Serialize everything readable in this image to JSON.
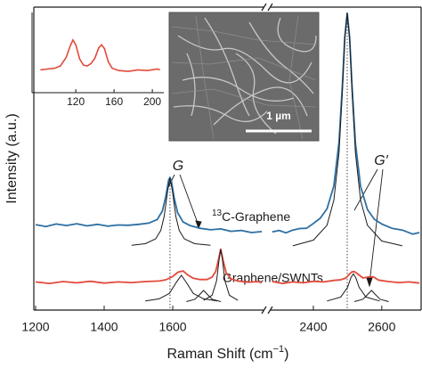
{
  "chart_data": {
    "type": "line",
    "x_label": {
      "text": "Raman Shift (cm",
      "superscript": "−1",
      "suffix": ")"
    },
    "y_label": "Intensity (a.u.)",
    "segments": [
      {
        "xlim": [
          1200,
          1870
        ],
        "xticks": [
          1200,
          1400,
          1600
        ]
      },
      {
        "xlim": [
          2270,
          2715
        ],
        "xticks": [
          2400,
          2600
        ]
      }
    ],
    "ylim": [
      0,
      100
    ],
    "reference_lines": [
      1592,
      2499
    ],
    "annotations": [
      {
        "text": "G"
      },
      {
        "text": "G′"
      }
    ],
    "series": [
      {
        "name_superscript": "13",
        "name": "C-Graphene",
        "color": "#2d6fa3",
        "line_width": 1.8,
        "x": [
          1200,
          1230,
          1260,
          1290,
          1320,
          1350,
          1380,
          1410,
          1440,
          1470,
          1500,
          1530,
          1555,
          1570,
          1580,
          1588,
          1592,
          1596,
          1604,
          1614,
          1630,
          1650,
          1680,
          1710,
          1740,
          1770,
          1800,
          1830,
          1860,
          null,
          2280,
          2300,
          2320,
          2340,
          2360,
          2380,
          2400,
          2420,
          2440,
          2460,
          2475,
          2485,
          2492,
          2499,
          2506,
          2513,
          2523,
          2538,
          2558,
          2578,
          2600,
          2630,
          2660,
          2690,
          2710
        ],
        "values": [
          28.2,
          27.6,
          28.4,
          27.9,
          28.5,
          27.8,
          28.3,
          27.7,
          28.1,
          28.0,
          28.3,
          28.7,
          29.9,
          32.8,
          37.6,
          42.9,
          43.8,
          42.6,
          37.1,
          32.2,
          29.1,
          27.9,
          27.0,
          26.5,
          26.8,
          26.0,
          26.3,
          25.6,
          25.9,
          null,
          25.8,
          26.3,
          25.5,
          26.4,
          26.9,
          27.0,
          28.6,
          30.3,
          33.4,
          41.0,
          55.5,
          74.3,
          90.2,
          98.0,
          90.0,
          74.0,
          55.2,
          40.8,
          33.2,
          30.0,
          28.4,
          27.0,
          26.4,
          25.1,
          25.6
        ]
      },
      {
        "name": "Graphene/SWNTs",
        "color": "#e24a3b",
        "line_width": 1.8,
        "x": [
          1200,
          1240,
          1280,
          1320,
          1360,
          1400,
          1440,
          1480,
          1520,
          1560,
          1580,
          1600,
          1615,
          1630,
          1645,
          1660,
          1680,
          1700,
          1715,
          1725,
          1732,
          1740,
          1748,
          1756,
          1770,
          1790,
          1820,
          1850,
          1860,
          null,
          2280,
          2310,
          2340,
          2370,
          2400,
          2430,
          2460,
          2480,
          2495,
          2505,
          2512,
          2520,
          2530,
          2545,
          2560,
          2575,
          2590,
          2620,
          2650,
          2680,
          2710
        ],
        "values": [
          9.3,
          8.8,
          9.4,
          9.0,
          9.5,
          8.9,
          9.3,
          9.1,
          9.4,
          9.6,
          10.0,
          11.1,
          12.5,
          12.9,
          11.5,
          10.5,
          10.1,
          10.1,
          10.9,
          12.7,
          16.0,
          20.1,
          15.9,
          12.3,
          10.3,
          9.6,
          9.2,
          9.4,
          9.0,
          null,
          9.4,
          8.8,
          9.3,
          9.0,
          9.5,
          9.3,
          9.8,
          10.0,
          10.6,
          11.8,
          12.6,
          12.7,
          11.9,
          10.6,
          10.9,
          11.0,
          9.9,
          9.4,
          9.1,
          9.3,
          8.9
        ]
      },
      {
        "color": "#1a1a1a",
        "line_width": 1,
        "x": [
          1480,
          1520,
          1550,
          1565,
          1575,
          1585,
          1592,
          1599,
          1609,
          1619,
          1634,
          1664,
          1710
        ],
        "values": [
          21.4,
          21.9,
          23.5,
          26.3,
          30.9,
          39.4,
          43.5,
          39.4,
          30.9,
          26.3,
          23.5,
          21.9,
          21.4
        ]
      },
      {
        "color": "#1a1a1a",
        "line_width": 1,
        "x": [
          2340,
          2400,
          2440,
          2460,
          2475,
          2485,
          2492,
          2499,
          2506,
          2513,
          2523,
          2538,
          2558,
          2600,
          2660
        ],
        "values": [
          21.2,
          23.1,
          28.0,
          36.3,
          52.0,
          72.3,
          89.6,
          98.0,
          89.6,
          72.3,
          52.0,
          36.3,
          28.0,
          22.8,
          21.2
        ]
      },
      {
        "color": "#1a1a1a",
        "line_width": 1,
        "x": [
          1520,
          1560,
          1590,
          1610,
          1625,
          1640,
          1660,
          1690,
          1730
        ],
        "values": [
          3.0,
          3.7,
          5.5,
          9.1,
          11.5,
          9.1,
          5.5,
          3.7,
          3.0
        ]
      },
      {
        "color": "#1a1a1a",
        "line_width": 1,
        "x": [
          1640,
          1665,
          1680,
          1690,
          1700,
          1715,
          1740
        ],
        "values": [
          2.8,
          3.6,
          5.3,
          6.5,
          5.3,
          3.6,
          2.8
        ]
      },
      {
        "color": "#1a1a1a",
        "line_width": 1,
        "x": [
          1690,
          1715,
          1728,
          1735,
          1740,
          1745,
          1752,
          1765,
          1790
        ],
        "values": [
          3.2,
          4.9,
          9.7,
          16.5,
          20.0,
          16.5,
          9.7,
          4.9,
          3.2
        ]
      },
      {
        "color": "#1a1a1a",
        "line_width": 1,
        "x": [
          2440,
          2480,
          2500,
          2510,
          2517,
          2524,
          2534,
          2554,
          2594
        ],
        "values": [
          3.0,
          4.3,
          7.5,
          10.7,
          12.0,
          10.7,
          7.5,
          4.3,
          3.0
        ]
      },
      {
        "color": "#1a1a1a",
        "line_width": 1,
        "x": [
          2520,
          2545,
          2560,
          2570,
          2580,
          2595,
          2620
        ],
        "values": [
          2.8,
          3.6,
          5.3,
          6.5,
          5.3,
          3.6,
          2.8
        ]
      }
    ],
    "inset": {
      "xlim": [
        78,
        212
      ],
      "xticks": [
        120,
        160,
        200
      ],
      "ylim": [
        0,
        10
      ],
      "color": "#e24a3b",
      "x": [
        83,
        90,
        98,
        104,
        110,
        114,
        117,
        120,
        124,
        128,
        132,
        136,
        140,
        144,
        147,
        150,
        154,
        158,
        165,
        175,
        185,
        195,
        205,
        208
      ],
      "values": [
        2.8,
        2.9,
        3.0,
        3.3,
        4.4,
        5.8,
        6.6,
        6.0,
        4.2,
        3.4,
        3.3,
        3.6,
        4.3,
        5.6,
        6.0,
        5.5,
        3.8,
        3.0,
        2.7,
        2.6,
        2.8,
        2.7,
        2.9,
        2.8
      ]
    },
    "image_scale_label": "1 µm"
  }
}
